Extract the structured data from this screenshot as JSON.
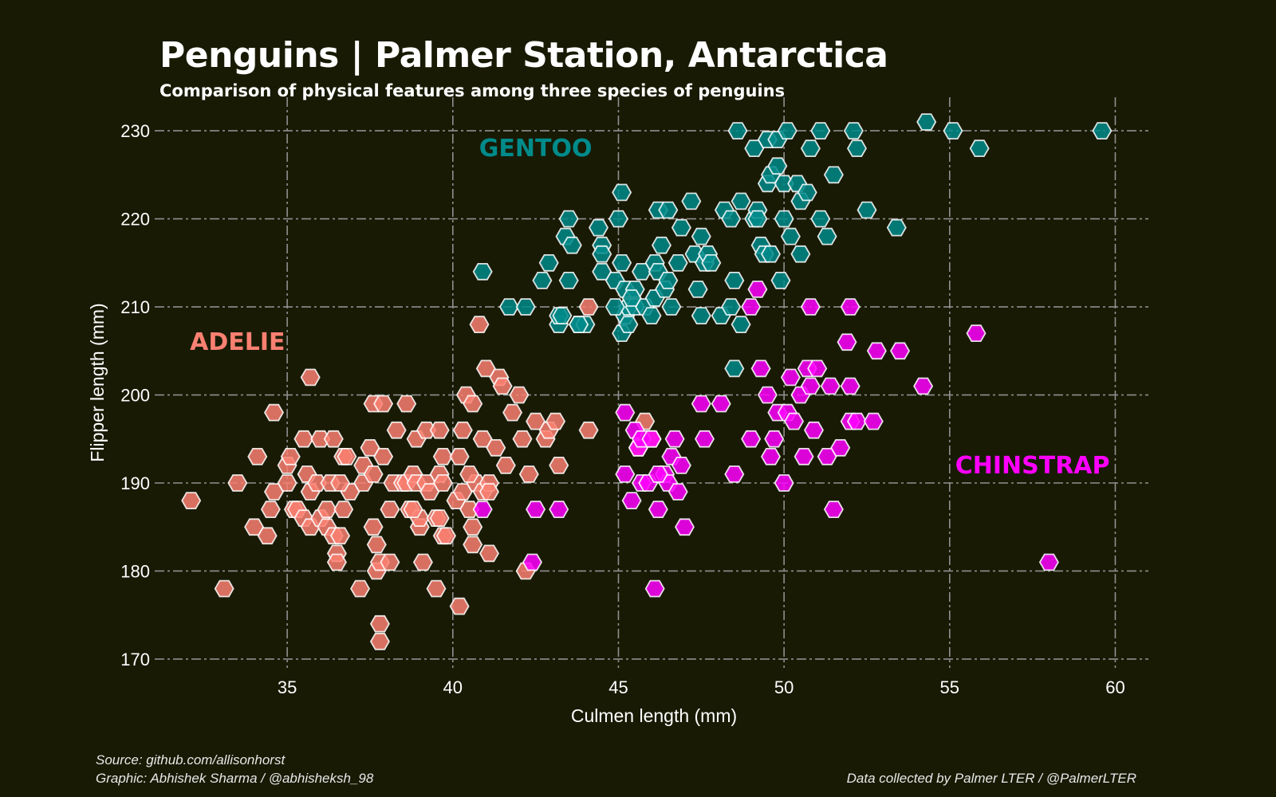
{
  "header": {
    "title": "Penguins | Palmer Station, Antarctica",
    "subtitle": "Comparison of physical features among three species of penguins"
  },
  "footer": {
    "source": "Source: github.com/allisonhorst",
    "graphic": "Graphic: Abhishek Sharma / @abhisheksh_98",
    "credit": "Data collected by Palmer LTER / @PalmerLTER"
  },
  "chart_data": {
    "type": "scatter",
    "marker": "hexagon",
    "xlabel": "Culmen length (mm)",
    "ylabel": "Flipper length (mm)",
    "xlim": [
      31,
      61
    ],
    "ylim": [
      169,
      232
    ],
    "xticks": [
      35,
      40,
      45,
      50,
      55,
      60
    ],
    "yticks": [
      170,
      180,
      190,
      200,
      210,
      220,
      230
    ],
    "grid": true,
    "annotations": [
      {
        "text": "ADELIE",
        "x": 33.5,
        "y": 206,
        "color": "#fa8072"
      },
      {
        "text": "GENTOO",
        "x": 42.5,
        "y": 228,
        "color": "#008b8b"
      },
      {
        "text": "CHINSTRAP",
        "x": 57.5,
        "y": 192,
        "color": "#ff00ff"
      }
    ],
    "series": [
      {
        "color": "#fa8072",
        "points": [
          [
            32.1,
            188
          ],
          [
            33.1,
            178
          ],
          [
            33.5,
            190
          ],
          [
            34,
            185
          ],
          [
            34.4,
            184
          ],
          [
            34.5,
            187
          ],
          [
            34.6,
            189
          ],
          [
            34.6,
            198
          ],
          [
            34.1,
            193
          ],
          [
            35,
            192
          ],
          [
            35,
            190
          ],
          [
            35.1,
            193
          ],
          [
            35.2,
            187
          ],
          [
            35.3,
            187
          ],
          [
            35.5,
            195
          ],
          [
            35.5,
            186
          ],
          [
            35.6,
            191
          ],
          [
            35.7,
            185
          ],
          [
            35.7,
            189
          ],
          [
            35.7,
            202
          ],
          [
            35.9,
            190
          ],
          [
            36,
            186
          ],
          [
            36,
            195
          ],
          [
            36.2,
            185
          ],
          [
            36.2,
            187
          ],
          [
            36.3,
            190
          ],
          [
            36.4,
            184
          ],
          [
            36.5,
            182
          ],
          [
            36.5,
            181
          ],
          [
            36.6,
            184
          ],
          [
            36.7,
            187
          ],
          [
            36.7,
            193
          ],
          [
            36.8,
            193
          ],
          [
            36.9,
            189
          ],
          [
            36.4,
            195
          ],
          [
            37.2,
            178
          ],
          [
            37.3,
            190
          ],
          [
            37.3,
            192
          ],
          [
            37.6,
            191
          ],
          [
            37.6,
            185
          ],
          [
            37.7,
            183
          ],
          [
            37.7,
            180
          ],
          [
            37.8,
            174
          ],
          [
            37.8,
            172
          ],
          [
            37.9,
            193
          ],
          [
            37.8,
            181
          ],
          [
            37.5,
            194
          ],
          [
            37.6,
            199
          ],
          [
            37.9,
            199
          ],
          [
            38.1,
            181
          ],
          [
            38.1,
            187
          ],
          [
            38.2,
            190
          ],
          [
            38.3,
            196
          ],
          [
            38.5,
            190
          ],
          [
            38.6,
            190
          ],
          [
            38.7,
            187
          ],
          [
            38.8,
            191
          ],
          [
            38.9,
            190
          ],
          [
            38.9,
            195
          ],
          [
            39,
            185
          ],
          [
            39,
            186
          ],
          [
            39.1,
            181
          ],
          [
            39.2,
            196
          ],
          [
            39.2,
            190
          ],
          [
            39.3,
            189
          ],
          [
            39.5,
            178
          ],
          [
            39.5,
            186
          ],
          [
            39.6,
            186
          ],
          [
            39.6,
            191
          ],
          [
            39.7,
            184
          ],
          [
            39.7,
            193
          ],
          [
            39.8,
            184
          ],
          [
            39.6,
            196
          ],
          [
            40.1,
            188
          ],
          [
            40.2,
            176
          ],
          [
            40.2,
            193
          ],
          [
            40.3,
            189
          ],
          [
            40.3,
            196
          ],
          [
            40.4,
            200
          ],
          [
            40.5,
            187
          ],
          [
            40.6,
            183
          ],
          [
            40.6,
            185
          ],
          [
            40.7,
            190
          ],
          [
            40.8,
            208
          ],
          [
            40.9,
            189
          ],
          [
            40.9,
            195
          ],
          [
            41,
            203
          ],
          [
            41.1,
            190
          ],
          [
            41.1,
            182
          ],
          [
            41.3,
            194
          ],
          [
            41.4,
            202
          ],
          [
            41.5,
            201
          ],
          [
            41.6,
            192
          ],
          [
            41.8,
            198
          ],
          [
            42,
            200
          ],
          [
            42.1,
            195
          ],
          [
            42.2,
            180
          ],
          [
            42.3,
            191
          ],
          [
            42.5,
            197
          ],
          [
            42.8,
            195
          ],
          [
            42.9,
            196
          ],
          [
            43.1,
            197
          ],
          [
            43.2,
            192
          ],
          [
            44.1,
            196
          ],
          [
            44.1,
            210
          ],
          [
            45.6,
            194
          ],
          [
            45.8,
            197
          ],
          [
            46,
            195
          ],
          [
            40.6,
            199
          ],
          [
            38.6,
            199
          ],
          [
            36.6,
            190
          ],
          [
            39.7,
            190
          ],
          [
            38.8,
            187
          ],
          [
            41.1,
            189
          ],
          [
            40.5,
            191
          ]
        ]
      },
      {
        "color": "#008b8b",
        "points": [
          [
            40.9,
            214
          ],
          [
            41.7,
            210
          ],
          [
            42.2,
            210
          ],
          [
            42.7,
            213
          ],
          [
            42.9,
            215
          ],
          [
            43.2,
            208
          ],
          [
            43.2,
            209
          ],
          [
            43.3,
            209
          ],
          [
            43.4,
            218
          ],
          [
            43.5,
            213
          ],
          [
            43.5,
            220
          ],
          [
            43.6,
            217
          ],
          [
            43.8,
            208
          ],
          [
            44,
            208
          ],
          [
            44.4,
            219
          ],
          [
            44.5,
            217
          ],
          [
            44.5,
            216
          ],
          [
            44.5,
            214
          ],
          [
            44.9,
            213
          ],
          [
            45,
            220
          ],
          [
            45.1,
            207
          ],
          [
            45.1,
            215
          ],
          [
            45.2,
            209
          ],
          [
            45.2,
            212
          ],
          [
            45.3,
            210
          ],
          [
            45.3,
            208
          ],
          [
            45.5,
            210
          ],
          [
            45.5,
            212
          ],
          [
            45.7,
            214
          ],
          [
            45.8,
            210
          ],
          [
            46.1,
            211
          ],
          [
            46.1,
            215
          ],
          [
            46.2,
            214
          ],
          [
            46.2,
            221
          ],
          [
            46.3,
            217
          ],
          [
            46.4,
            212
          ],
          [
            46.5,
            213
          ],
          [
            46.5,
            221
          ],
          [
            46.6,
            210
          ],
          [
            46.8,
            215
          ],
          [
            46.9,
            219
          ],
          [
            47.2,
            222
          ],
          [
            47.3,
            216
          ],
          [
            47.5,
            209
          ],
          [
            47.5,
            218
          ],
          [
            47.6,
            215
          ],
          [
            47.7,
            216
          ],
          [
            47.8,
            215
          ],
          [
            48.1,
            209
          ],
          [
            48.2,
            221
          ],
          [
            48.4,
            220
          ],
          [
            48.5,
            213
          ],
          [
            48.6,
            230
          ],
          [
            48.7,
            208
          ],
          [
            48.7,
            222
          ],
          [
            49.1,
            220
          ],
          [
            49.1,
            228
          ],
          [
            49.2,
            221
          ],
          [
            49.3,
            217
          ],
          [
            49.4,
            216
          ],
          [
            49.5,
            224
          ],
          [
            49.5,
            229
          ],
          [
            49.6,
            225
          ],
          [
            49.8,
            229
          ],
          [
            49.9,
            213
          ],
          [
            50,
            220
          ],
          [
            50,
            224
          ],
          [
            50.2,
            218
          ],
          [
            50.4,
            224
          ],
          [
            50.5,
            222
          ],
          [
            50.7,
            223
          ],
          [
            50.8,
            228
          ],
          [
            51.1,
            220
          ],
          [
            51.3,
            218
          ],
          [
            51.5,
            225
          ],
          [
            52.1,
            230
          ],
          [
            52.2,
            228
          ],
          [
            52.5,
            221
          ],
          [
            53.4,
            219
          ],
          [
            54.3,
            231
          ],
          [
            55.1,
            230
          ],
          [
            55.9,
            228
          ],
          [
            59.6,
            230
          ],
          [
            45.4,
            211
          ],
          [
            46,
            209
          ],
          [
            47.4,
            212
          ],
          [
            48.4,
            210
          ],
          [
            49.8,
            226
          ],
          [
            50.5,
            216
          ],
          [
            44.9,
            210
          ],
          [
            50.1,
            230
          ],
          [
            51.1,
            230
          ],
          [
            49.6,
            216
          ],
          [
            43.8,
            208
          ],
          [
            49.2,
            220
          ],
          [
            45.1,
            223
          ],
          [
            48.5,
            203
          ]
        ]
      },
      {
        "color": "#ff00ff",
        "points": [
          [
            40.9,
            187
          ],
          [
            42.4,
            181
          ],
          [
            42.5,
            187
          ],
          [
            43.2,
            187
          ],
          [
            45.2,
            191
          ],
          [
            45.2,
            198
          ],
          [
            45.4,
            188
          ],
          [
            45.5,
            196
          ],
          [
            45.6,
            194
          ],
          [
            45.7,
            195
          ],
          [
            45.7,
            190
          ],
          [
            45.9,
            190
          ],
          [
            46,
            195
          ],
          [
            46.1,
            178
          ],
          [
            46.2,
            187
          ],
          [
            46.4,
            191
          ],
          [
            46.5,
            190
          ],
          [
            46.6,
            193
          ],
          [
            46.7,
            195
          ],
          [
            46.8,
            189
          ],
          [
            46.9,
            192
          ],
          [
            47,
            185
          ],
          [
            47.5,
            199
          ],
          [
            47.6,
            195
          ],
          [
            48.1,
            199
          ],
          [
            48.5,
            191
          ],
          [
            49,
            195
          ],
          [
            49,
            210
          ],
          [
            49.2,
            212
          ],
          [
            49.3,
            203
          ],
          [
            49.5,
            200
          ],
          [
            49.6,
            193
          ],
          [
            49.7,
            195
          ],
          [
            49.8,
            198
          ],
          [
            50,
            190
          ],
          [
            50.1,
            198
          ],
          [
            50.2,
            202
          ],
          [
            50.3,
            197
          ],
          [
            50.5,
            200
          ],
          [
            50.6,
            193
          ],
          [
            50.7,
            203
          ],
          [
            50.8,
            201
          ],
          [
            50.8,
            210
          ],
          [
            50.9,
            196
          ],
          [
            51,
            203
          ],
          [
            51.3,
            193
          ],
          [
            51.4,
            201
          ],
          [
            51.5,
            187
          ],
          [
            51.7,
            194
          ],
          [
            51.9,
            206
          ],
          [
            52,
            197
          ],
          [
            52,
            201
          ],
          [
            52,
            210
          ],
          [
            52.2,
            197
          ],
          [
            52.7,
            197
          ],
          [
            52.8,
            205
          ],
          [
            53.5,
            205
          ],
          [
            54.2,
            201
          ],
          [
            55.8,
            207
          ],
          [
            58,
            181
          ],
          [
            46.2,
            191
          ]
        ]
      }
    ]
  }
}
